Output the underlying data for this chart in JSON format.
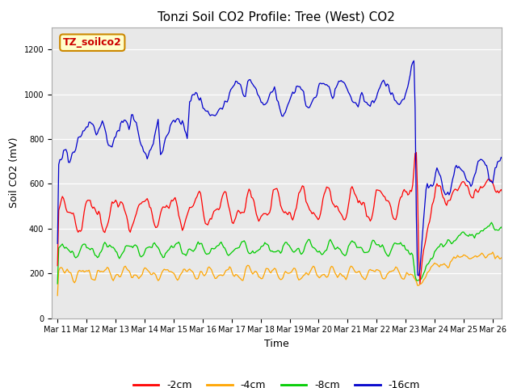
{
  "title": "Tonzi Soil CO2 Profile: Tree (West) CO2",
  "xlabel": "Time",
  "ylabel": "Soil CO2 (mV)",
  "ylim": [
    0,
    1300
  ],
  "yticks": [
    0,
    200,
    400,
    600,
    800,
    1000,
    1200
  ],
  "fig_bg_color": "#ffffff",
  "plot_bg_color": "#e8e8e8",
  "grid_color": "#ffffff",
  "watermark_text": "TZ_soilco2",
  "watermark_bg": "#ffffcc",
  "watermark_border": "#cc8800",
  "line_colors": [
    "#ff0000",
    "#ffa500",
    "#00cc00",
    "#0000cc"
  ],
  "legend_labels": [
    "-2cm",
    "-4cm",
    "-8cm",
    "-16cm"
  ],
  "title_fontsize": 11,
  "label_fontsize": 9,
  "tick_fontsize": 7,
  "legend_fontsize": 9
}
